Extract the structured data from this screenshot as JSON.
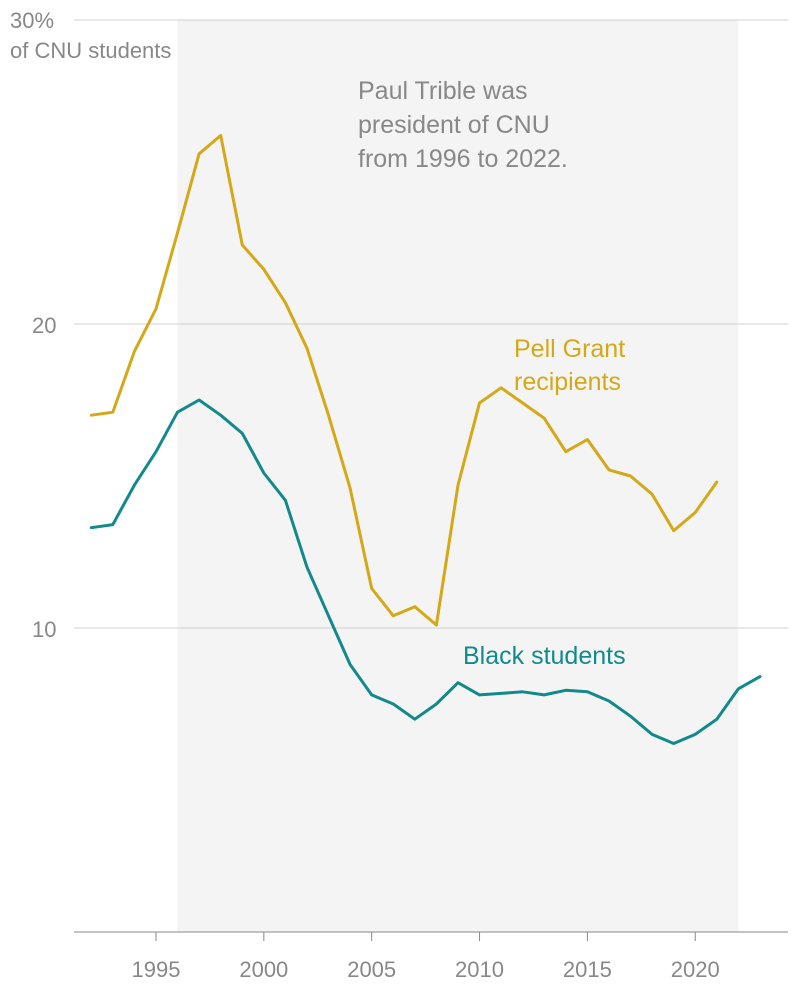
{
  "chart_data": {
    "type": "line",
    "y_unit_label": "of CNU students",
    "ylim": [
      0,
      30
    ],
    "y_ticks": [
      {
        "value": 30,
        "label": "30%"
      },
      {
        "value": 20,
        "label": "20"
      },
      {
        "value": 10,
        "label": "10"
      }
    ],
    "xlim": [
      1991.2,
      2024.3
    ],
    "x_ticks": [
      {
        "value": 1995,
        "label": "1995"
      },
      {
        "value": 2000,
        "label": "2000"
      },
      {
        "value": 2005,
        "label": "2005"
      },
      {
        "value": 2010,
        "label": "2010"
      },
      {
        "value": 2015,
        "label": "2015"
      },
      {
        "value": 2020,
        "label": "2020"
      }
    ],
    "highlight_band": {
      "x_start": 1996,
      "x_end": 2022,
      "color": "#f4f4f4"
    },
    "annotation": {
      "lines": [
        "Paul Trible was",
        "president of CNU",
        "from 1996 to 2022."
      ]
    },
    "grid": true,
    "series": [
      {
        "name": "Pell Grant recipients",
        "label_lines": [
          "Pell Grant",
          "recipients"
        ],
        "color": "#d4a817",
        "x": [
          1992,
          1993,
          1994,
          1995,
          1996,
          1997,
          1998,
          1999,
          2000,
          2001,
          2002,
          2003,
          2004,
          2005,
          2006,
          2007,
          2008,
          2009,
          2010,
          2011,
          2012,
          2013,
          2014,
          2015,
          2016,
          2017,
          2018,
          2019,
          2020,
          2021
        ],
        "values": [
          17.0,
          17.1,
          19.1,
          20.5,
          23.0,
          25.6,
          26.2,
          22.6,
          21.8,
          20.7,
          19.2,
          17.0,
          14.6,
          11.3,
          10.4,
          10.7,
          10.1,
          14.7,
          17.4,
          17.9,
          17.4,
          16.9,
          15.8,
          16.2,
          15.2,
          15.0,
          14.4,
          13.2,
          13.8,
          14.8
        ]
      },
      {
        "name": "Black students",
        "label_lines": [
          "Black students"
        ],
        "color": "#12898a",
        "x": [
          1992,
          1993,
          1994,
          1995,
          1996,
          1997,
          1998,
          1999,
          2000,
          2001,
          2002,
          2003,
          2004,
          2005,
          2006,
          2007,
          2008,
          2009,
          2010,
          2011,
          2012,
          2013,
          2014,
          2015,
          2016,
          2017,
          2018,
          2019,
          2020,
          2021,
          2022,
          2023
        ],
        "values": [
          13.3,
          13.4,
          14.7,
          15.8,
          17.1,
          17.5,
          17.0,
          16.4,
          15.1,
          14.2,
          12.0,
          10.4,
          8.8,
          7.8,
          7.5,
          7.0,
          7.5,
          8.2,
          7.8,
          7.85,
          7.9,
          7.8,
          7.95,
          7.9,
          7.6,
          7.1,
          6.5,
          6.2,
          6.5,
          7.0,
          8.0,
          8.4
        ]
      }
    ]
  }
}
